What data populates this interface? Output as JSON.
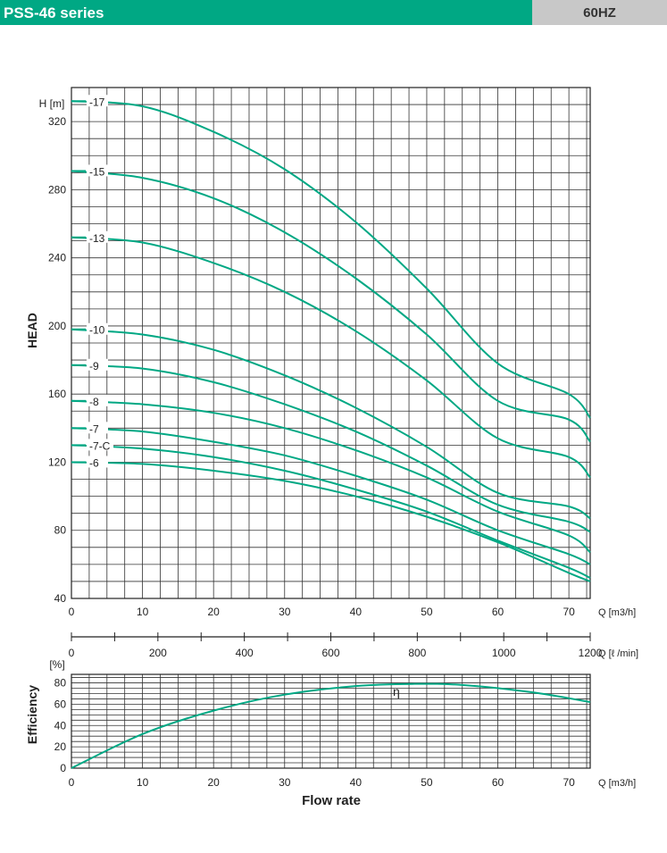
{
  "header": {
    "title": "PSS-46 series",
    "frequency": "60HZ"
  },
  "colors": {
    "accent": "#00a884",
    "curve": "#00a884",
    "header_right_bg": "#c8c8c8"
  },
  "chart_data": [
    {
      "type": "line",
      "ylabel": "HEAD",
      "yunit": "H [m]",
      "xunit": "Q [m3/h]",
      "xlim": [
        0,
        73
      ],
      "ylim": [
        40,
        340
      ],
      "xticks": [
        0,
        10,
        20,
        30,
        40,
        50,
        60,
        70
      ],
      "yticks": [
        40,
        80,
        120,
        160,
        200,
        240,
        280,
        320
      ],
      "grid": true,
      "series": [
        {
          "name": "17",
          "x": [
            0,
            10,
            20,
            30,
            40,
            50,
            60,
            70,
            73
          ],
          "y": [
            332,
            329,
            314,
            292,
            261,
            222,
            178,
            160,
            146
          ]
        },
        {
          "name": "15",
          "x": [
            0,
            10,
            20,
            30,
            40,
            50,
            60,
            70,
            73
          ],
          "y": [
            291,
            287,
            275,
            255,
            228,
            195,
            156,
            145,
            132
          ]
        },
        {
          "name": "13",
          "x": [
            0,
            10,
            20,
            30,
            40,
            50,
            60,
            70,
            73
          ],
          "y": [
            252,
            249,
            237,
            220,
            197,
            168,
            134,
            123,
            111
          ]
        },
        {
          "name": "10",
          "x": [
            0,
            10,
            20,
            30,
            40,
            50,
            60,
            70,
            73
          ],
          "y": [
            198,
            195,
            186,
            171,
            152,
            129,
            102,
            94,
            87
          ]
        },
        {
          "name": "9",
          "x": [
            0,
            10,
            20,
            30,
            40,
            50,
            60,
            70,
            73
          ],
          "y": [
            177,
            175,
            167,
            154,
            138,
            118,
            95,
            85,
            79
          ]
        },
        {
          "name": "8",
          "x": [
            0,
            10,
            20,
            30,
            40,
            50,
            60,
            70,
            73
          ],
          "y": [
            156,
            154,
            149,
            140,
            127,
            111,
            91,
            77,
            67
          ]
        },
        {
          "name": "7",
          "x": [
            0,
            10,
            20,
            30,
            40,
            50,
            60,
            70,
            73
          ],
          "y": [
            140,
            138,
            132,
            124,
            112,
            98,
            80,
            66,
            60
          ]
        },
        {
          "name": "7-C",
          "x": [
            0,
            10,
            20,
            30,
            40,
            50,
            60,
            70,
            73
          ],
          "y": [
            130,
            128,
            123,
            115,
            104,
            91,
            74,
            58,
            52
          ]
        },
        {
          "name": "6",
          "x": [
            0,
            10,
            20,
            30,
            40,
            50,
            60,
            70,
            73
          ],
          "y": [
            120,
            119,
            115,
            109,
            100,
            88,
            73,
            55,
            50
          ]
        }
      ]
    },
    {
      "type": "line",
      "ylabel": "Efficiency",
      "yunit": "[%]",
      "xlabel": "Flow rate",
      "xunit": "Q [m3/h]",
      "x2unit": "Q [ℓ /min]",
      "x2ticks": [
        0,
        200,
        400,
        600,
        800,
        1000,
        1200
      ],
      "xlim": [
        0,
        73
      ],
      "ylim": [
        0,
        88
      ],
      "xticks": [
        0,
        10,
        20,
        30,
        40,
        50,
        60,
        70
      ],
      "yticks": [
        0,
        20,
        40,
        60,
        80
      ],
      "grid": true,
      "annotation": "η",
      "series": [
        {
          "name": "η",
          "x": [
            0,
            10,
            20,
            30,
            40,
            48,
            55,
            65,
            73
          ],
          "y": [
            0,
            32,
            54,
            69,
            77,
            79,
            78,
            71,
            62
          ]
        }
      ]
    }
  ]
}
